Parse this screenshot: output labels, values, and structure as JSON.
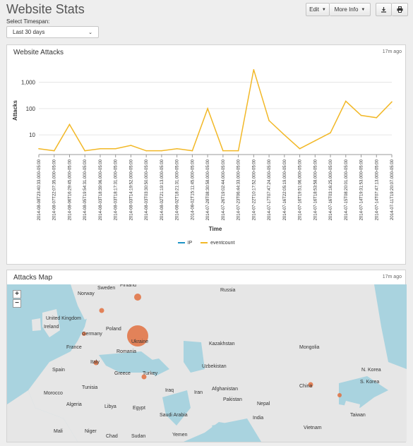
{
  "header": {
    "title": "Website Stats",
    "edit_label": "Edit",
    "more_info_label": "More Info",
    "download_icon": "download-icon",
    "print_icon": "print-icon"
  },
  "timespan": {
    "label": "Select Timespan:",
    "value": "Last 30 days"
  },
  "attacks_panel": {
    "title": "Website Attacks",
    "time_ago": "17m ago",
    "legend": [
      {
        "name": "IP",
        "color": "#1e93c6"
      },
      {
        "name": "eventcount",
        "color": "#f2b827"
      }
    ]
  },
  "map_panel": {
    "title": "Attacks Map",
    "time_ago": "17m ago",
    "zoom_in": "+",
    "zoom_out": "−",
    "labels": [
      "Sweden",
      "Finland",
      "Norway",
      "Russia",
      "United Kingdom",
      "Ireland",
      "Germany",
      "Poland",
      "Ukraine",
      "Kazakhstan",
      "France",
      "Romania",
      "Mongolia",
      "Spain",
      "Italy",
      "Greece",
      "Turkey",
      "Uzbekistan",
      "N. Korea",
      "S. Korea",
      "Tunisia",
      "Iraq",
      "Iran",
      "Afghanistan",
      "China",
      "Morocco",
      "Algeria",
      "Libya",
      "Egypt",
      "Pakistan",
      "Nepal",
      "Saudi Arabia",
      "India",
      "Taiwan",
      "Mali",
      "Niger",
      "Chad",
      "Sudan",
      "Yemen",
      "Vietnam"
    ],
    "bubble_color": "#e07040"
  },
  "chart_data": {
    "type": "line",
    "ylabel": "Attacks",
    "xlabel": "Time",
    "yscale": "log",
    "yticks": [
      "10",
      "100",
      "1,000"
    ],
    "categories": [
      "2014-08-08T23:40:33.000-05:00",
      "2014-08-07T22:07:35.000-05:00",
      "2014-08-06T16:29:45.000-05:00",
      "2014-08-05T19:54:31.000-05:00",
      "2014-08-03T18:39:06.000-05:00",
      "2014-08-03T18:17:31.000-05:00",
      "2014-08-03T14:19:52.000-05:00",
      "2014-08-03T03:30:50.000-05:00",
      "2014-08-02T21:19:13.000-05:00",
      "2014-08-02T18:21:31.000-05:00",
      "2014-08-02T15:11:45.000-05:00",
      "2014-07-28T08:30:58.000-05:00",
      "2014-07-26T19:02:44.000-05:00",
      "2014-07-23T06:44:33.000-05:00",
      "2014-07-22T10:17:52.000-05:00",
      "2014-07-17T07:47:24.000-05:00",
      "2014-07-16T22:05:19.000-05:00",
      "2014-07-16T19:51:06.000-05:00",
      "2014-07-16T18:53:58.000-05:00",
      "2014-07-16T03:16:25.000-05:00",
      "2014-07-15T08:20:01.000-05:00",
      "2014-07-14T19:31:53.000-05:00",
      "2014-07-14T07:47:13.000-05:00",
      "2014-07-11T19:20:07.000-05:00"
    ],
    "series": [
      {
        "name": "eventcount",
        "values": [
          3,
          2.5,
          25,
          2.5,
          3,
          3,
          4,
          2.5,
          2.5,
          3,
          2.5,
          100,
          2.5,
          2.5,
          3000,
          35,
          10,
          3,
          6,
          12,
          190,
          55,
          45,
          180
        ]
      }
    ],
    "ylim": [
      1.8,
      4000
    ],
    "grid": true,
    "legend_position": "bottom"
  }
}
